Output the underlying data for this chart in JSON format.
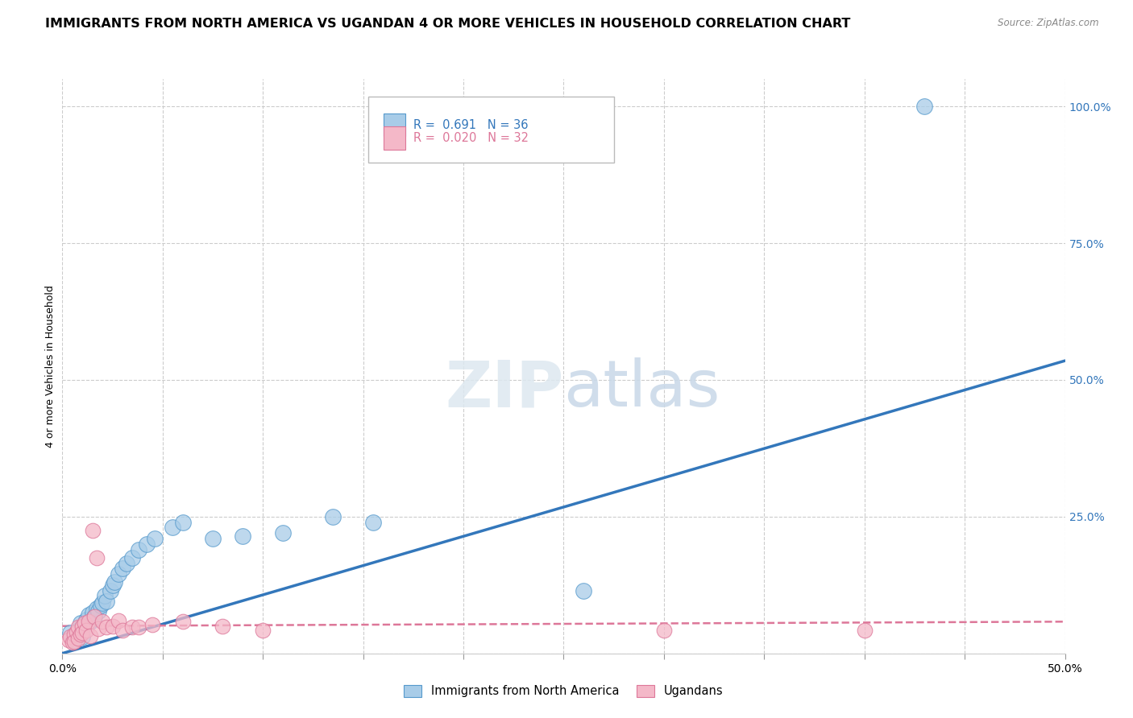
{
  "title": "IMMIGRANTS FROM NORTH AMERICA VS UGANDAN 4 OR MORE VEHICLES IN HOUSEHOLD CORRELATION CHART",
  "source": "Source: ZipAtlas.com",
  "ylabel": "4 or more Vehicles in Household",
  "xlim": [
    0.0,
    0.5
  ],
  "ylim": [
    0.0,
    1.05
  ],
  "xticks": [
    0.0,
    0.05,
    0.1,
    0.15,
    0.2,
    0.25,
    0.3,
    0.35,
    0.4,
    0.45,
    0.5
  ],
  "ytick_positions": [
    0.0,
    0.25,
    0.5,
    0.75,
    1.0
  ],
  "ytick_labels": [
    "",
    "25.0%",
    "50.0%",
    "75.0%",
    "100.0%"
  ],
  "blue_R": "0.691",
  "blue_N": "36",
  "pink_R": "0.020",
  "pink_N": "32",
  "blue_color": "#a8cce8",
  "pink_color": "#f4b8c8",
  "blue_edge_color": "#5599cc",
  "pink_edge_color": "#dd7799",
  "blue_line_color": "#3377bb",
  "pink_line_color": "#dd7799",
  "grid_color": "#cccccc",
  "blue_scatter_x": [
    0.004,
    0.006,
    0.008,
    0.009,
    0.01,
    0.01,
    0.012,
    0.013,
    0.014,
    0.015,
    0.016,
    0.017,
    0.018,
    0.019,
    0.02,
    0.021,
    0.022,
    0.024,
    0.025,
    0.026,
    0.028,
    0.03,
    0.032,
    0.035,
    0.038,
    0.042,
    0.046,
    0.055,
    0.06,
    0.075,
    0.09,
    0.11,
    0.135,
    0.155,
    0.26,
    0.43
  ],
  "blue_scatter_y": [
    0.038,
    0.025,
    0.042,
    0.055,
    0.048,
    0.03,
    0.062,
    0.07,
    0.058,
    0.075,
    0.068,
    0.082,
    0.078,
    0.088,
    0.092,
    0.105,
    0.095,
    0.115,
    0.125,
    0.13,
    0.145,
    0.155,
    0.165,
    0.175,
    0.19,
    0.2,
    0.21,
    0.23,
    0.24,
    0.21,
    0.215,
    0.22,
    0.25,
    0.24,
    0.115,
    1.0
  ],
  "pink_scatter_x": [
    0.003,
    0.004,
    0.005,
    0.006,
    0.006,
    0.007,
    0.008,
    0.008,
    0.009,
    0.01,
    0.01,
    0.011,
    0.012,
    0.013,
    0.014,
    0.015,
    0.016,
    0.017,
    0.018,
    0.02,
    0.022,
    0.025,
    0.028,
    0.03,
    0.035,
    0.038,
    0.045,
    0.06,
    0.08,
    0.1,
    0.3,
    0.4
  ],
  "pink_scatter_y": [
    0.025,
    0.03,
    0.02,
    0.035,
    0.022,
    0.04,
    0.028,
    0.048,
    0.035,
    0.05,
    0.038,
    0.055,
    0.042,
    0.058,
    0.032,
    0.225,
    0.068,
    0.175,
    0.045,
    0.058,
    0.048,
    0.05,
    0.06,
    0.042,
    0.048,
    0.048,
    0.052,
    0.058,
    0.05,
    0.042,
    0.042,
    0.042
  ],
  "blue_line_x": [
    0.0,
    0.5
  ],
  "blue_line_y": [
    0.0,
    0.535
  ],
  "pink_line_x": [
    0.0,
    0.5
  ],
  "pink_line_y": [
    0.05,
    0.058
  ],
  "legend_label_blue": "Immigrants from North America",
  "legend_label_pink": "Ugandans",
  "title_fontsize": 11.5,
  "axis_label_fontsize": 9,
  "tick_fontsize": 10
}
